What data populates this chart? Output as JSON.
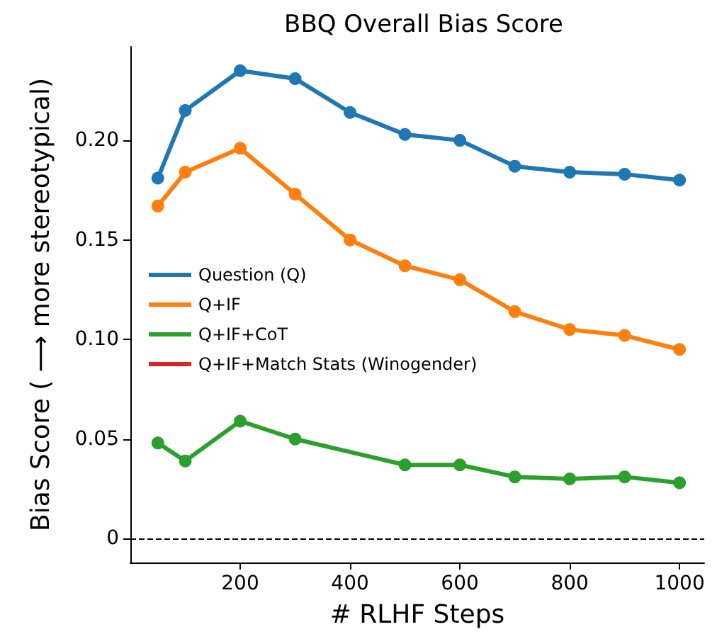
{
  "chart_data": {
    "type": "line",
    "title": "BBQ Overall Bias Score",
    "xlabel": "# RLHF Steps",
    "ylabel": "Bias Score ( ⟶ more stereotypical)",
    "series": [
      {
        "name": "Question (Q)",
        "color": "#1f77b4",
        "x": [
          50,
          100,
          200,
          300,
          400,
          500,
          600,
          700,
          800,
          900,
          1000
        ],
        "values": [
          0.181,
          0.215,
          0.235,
          0.231,
          0.214,
          0.203,
          0.2,
          0.187,
          0.184,
          0.183,
          0.18
        ]
      },
      {
        "name": "Q+IF",
        "color": "#ff7f0e",
        "x": [
          50,
          100,
          200,
          300,
          400,
          500,
          600,
          700,
          800,
          900,
          1000
        ],
        "values": [
          0.167,
          0.184,
          0.196,
          0.173,
          0.15,
          0.137,
          0.13,
          0.114,
          0.105,
          0.102,
          0.095
        ]
      },
      {
        "name": "Q+IF+CoT",
        "color": "#2ca02c",
        "x": [
          50,
          100,
          200,
          300,
          500,
          600,
          700,
          800,
          900,
          1000
        ],
        "values": [
          0.048,
          0.039,
          0.059,
          0.05,
          0.037,
          0.037,
          0.031,
          0.03,
          0.031,
          0.028
        ]
      },
      {
        "name": "Q+IF+Match Stats (Winogender)",
        "color": "#d62728"
      }
    ],
    "xlim": [
      0,
      1045
    ],
    "xticks": [
      200,
      400,
      600,
      800,
      1000
    ],
    "ylim": [
      -0.012,
      0.247
    ],
    "yticks": [
      {
        "value": 0,
        "label": "0"
      },
      {
        "value": 0.05,
        "label": "0.05"
      },
      {
        "value": 0.1,
        "label": "0.10"
      },
      {
        "value": 0.15,
        "label": "0.15"
      },
      {
        "value": 0.2,
        "label": "0.20"
      }
    ],
    "ref_lines": [
      {
        "axis": "y",
        "value": 0,
        "color": "#000000",
        "line_style": "dashed"
      }
    ],
    "grid": false,
    "legend": "center left",
    "marker": "circle",
    "line_style": "solid"
  }
}
